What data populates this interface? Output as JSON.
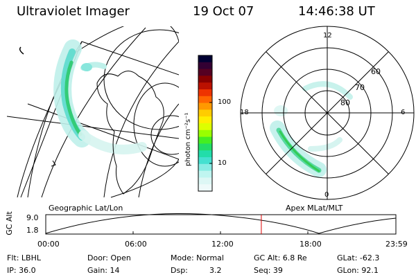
{
  "header": {
    "instrument": "Ultraviolet Imager",
    "date": "19 Oct 07",
    "time": "14:46:38 UT"
  },
  "colorbar": {
    "unit_label": "photon cm⁻²s⁻¹",
    "ticks": [
      "100",
      "10"
    ],
    "colors": [
      "#000033",
      "#330033",
      "#550022",
      "#880000",
      "#bb1100",
      "#ee3300",
      "#ff6600",
      "#ff9900",
      "#ffcc00",
      "#ffee00",
      "#ddff00",
      "#99ff00",
      "#44ee22",
      "#22dd66",
      "#22ddaa",
      "#44e0d0",
      "#88ece4",
      "#bff5f0",
      "#ddf7f5",
      "#eefafa"
    ]
  },
  "polar_plot": {
    "mlt_labels": {
      "top": "12",
      "left": "18",
      "right": "6",
      "bottom": "0"
    },
    "lat_labels": [
      "60",
      "70",
      "80"
    ]
  },
  "maps": {
    "left_caption": "Geographic Lat/Lon",
    "right_caption": "Apex MLat/MLT"
  },
  "timeline": {
    "y_label": "GC Alt",
    "y_max": "9.0",
    "y_min": "1.8",
    "x_ticks": [
      "00:00",
      "06:00",
      "12:00",
      "18:00",
      "23:59"
    ],
    "marker_time": "14:46",
    "marker_color": "#dd0000"
  },
  "status": {
    "row1": {
      "flt": "Flt: LBHL",
      "door": "Door: Open",
      "mode": "Mode: Normal",
      "gc_alt": "GC Alt: 6.8 Re",
      "glat": "GLat: -62.3"
    },
    "row2": {
      "ip": "IP: 36.0",
      "gain": "Gain: 14",
      "dsp_label": "Dsp:",
      "dsp_value": "3.2",
      "seq": "Seq: 39",
      "glon": "GLon: 92.1"
    }
  }
}
